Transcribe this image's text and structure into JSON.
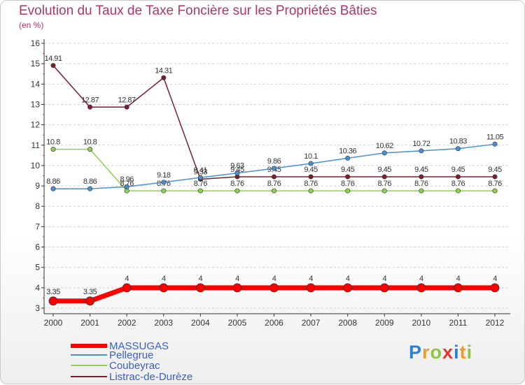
{
  "title": "Evolution du Taux de Taxe Foncière sur les Propriétés Bâties",
  "unit_label": "(en %)",
  "brand": "Proxiti",
  "colors": {
    "title": "#b03569",
    "axis": "#333333",
    "grid": "#cfcfcf",
    "legend_text": "#3b5fc4"
  },
  "chart_data": {
    "type": "line",
    "title": "Evolution du Taux de Taxe Foncière sur les Propriétés Bâties",
    "ylabel": "(en %)",
    "xlabel": "",
    "ylim": [
      3,
      16
    ],
    "yticks": [
      3,
      4,
      5,
      6,
      7,
      8,
      9,
      10,
      11,
      12,
      13,
      14,
      15,
      16
    ],
    "categories": [
      "2000",
      "2001",
      "2002",
      "2003",
      "2004",
      "2005",
      "2006",
      "2007",
      "2008",
      "2009",
      "2010",
      "2011",
      "2012"
    ],
    "series": [
      {
        "name": "Listrac-de-Durèze",
        "color": "#7a1f2b",
        "values": [
          14.91,
          12.87,
          12.87,
          14.31,
          9.33,
          9.45,
          9.45,
          9.45,
          9.45,
          9.45,
          9.45,
          9.45,
          9.45
        ],
        "labels": [
          "14.91",
          "12.87",
          "12.87",
          "14.31",
          "9.33",
          "9.45",
          "9.45",
          "9.45",
          "9.45",
          "9.45",
          "9.45",
          "9.45",
          "9.45"
        ]
      },
      {
        "name": "Coubeyrac",
        "color": "#8fd14f",
        "values": [
          10.8,
          10.8,
          8.76,
          8.76,
          8.76,
          8.76,
          8.76,
          8.76,
          8.76,
          8.76,
          8.76,
          8.76,
          8.76
        ],
        "labels": [
          "10.8",
          "10.8",
          "8.76",
          "8.76",
          "8.76",
          "8.76",
          "8.76",
          "8.76",
          "8.76",
          "8.76",
          "8.76",
          "8.76",
          "8.76"
        ]
      },
      {
        "name": "Pellegrue",
        "color": "#4a8fd1",
        "values": [
          8.86,
          8.86,
          8.96,
          9.18,
          9.41,
          9.63,
          9.86,
          10.1,
          10.36,
          10.62,
          10.72,
          10.83,
          11.05
        ],
        "labels": [
          "8.86",
          "8.86",
          "8.96",
          "9.18",
          "9.41",
          "9.63",
          "9.86",
          "10.1",
          "10.36",
          "10.62",
          "10.72",
          "10.83",
          "11.05"
        ]
      },
      {
        "name": "MASSUGAS",
        "color": "#ff0000",
        "values": [
          3.35,
          3.35,
          4,
          4,
          4,
          4,
          4,
          4,
          4,
          4,
          4,
          4,
          4
        ],
        "labels": [
          "3.35",
          "3.35",
          "4",
          "4",
          "4",
          "4",
          "4",
          "4",
          "4",
          "4",
          "4",
          "4",
          "4"
        ]
      }
    ],
    "legend": [
      "MASSUGAS",
      "Pellegrue",
      "Coubeyrac",
      "Listrac-de-Durèze"
    ],
    "legend_position": "bottom-left",
    "grid": "horizontal dashed"
  }
}
